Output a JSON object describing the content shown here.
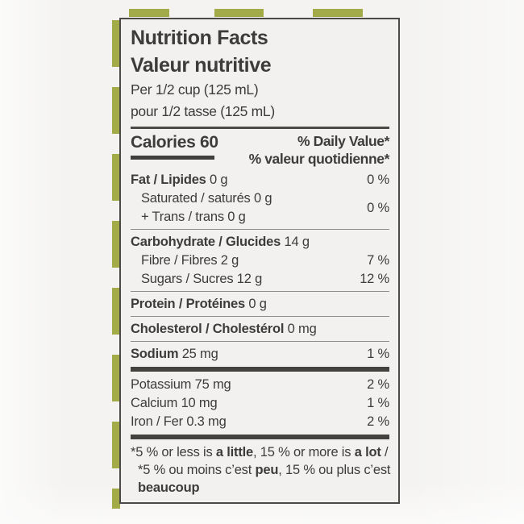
{
  "colors": {
    "stripe_green": "#a3ab48",
    "label_bg": "#f2f1ef",
    "page_bg": "#f4f3f1",
    "ink": "#3e3c3a",
    "rule": "#4c4a47"
  },
  "label": {
    "title_en": "Nutrition Facts",
    "title_fr": "Valeur nutritive",
    "serving_en": "Per 1/2 cup (125 mL)",
    "serving_fr": "pour 1/2 tasse (125 mL)",
    "calories": {
      "label": "Calories",
      "value": "60"
    },
    "daily_value_header_en": "% Daily Value*",
    "daily_value_header_fr": "% valeur quotidienne*",
    "rows": [
      {
        "key": "fat",
        "sep_before": "none",
        "indent": false,
        "dv": "0 %",
        "lines": [
          {
            "bold": "Fat / Lipides",
            "rest": " 0 g"
          }
        ]
      },
      {
        "key": "saturated-trans",
        "sep_before": "none",
        "indent": true,
        "dv": "0 %",
        "lines": [
          {
            "bold": "",
            "rest": "Saturated / saturés 0 g"
          },
          {
            "bold": "",
            "rest": "+ Trans / trans 0 g"
          }
        ]
      },
      {
        "key": "carbohydrate",
        "sep_before": "hairline",
        "indent": false,
        "dv": "",
        "lines": [
          {
            "bold": "Carbohydrate / Glucides",
            "rest": " 14 g"
          }
        ]
      },
      {
        "key": "fibre",
        "sep_before": "none",
        "indent": true,
        "dv": "7 %",
        "lines": [
          {
            "bold": "",
            "rest": "Fibre / Fibres 2 g"
          }
        ]
      },
      {
        "key": "sugars",
        "sep_before": "none",
        "indent": true,
        "dv": "12 %",
        "lines": [
          {
            "bold": "",
            "rest": "Sugars / Sucres 12 g"
          }
        ]
      },
      {
        "key": "protein",
        "sep_before": "hairline",
        "indent": false,
        "dv": "",
        "lines": [
          {
            "bold": "Protein / Protéines",
            "rest": " 0 g"
          }
        ]
      },
      {
        "key": "cholesterol",
        "sep_before": "hairline",
        "indent": false,
        "dv": "",
        "lines": [
          {
            "bold": "Cholesterol / Cholestérol",
            "rest": " 0 mg"
          }
        ]
      },
      {
        "key": "sodium",
        "sep_before": "hairline",
        "indent": false,
        "dv": "1 %",
        "lines": [
          {
            "bold": "Sodium",
            "rest": " 25 mg"
          }
        ]
      },
      {
        "key": "potassium",
        "sep_before": "thick",
        "indent": false,
        "dv": "2 %",
        "lines": [
          {
            "bold": "",
            "rest": "Potassium 75 mg"
          }
        ]
      },
      {
        "key": "calcium",
        "sep_before": "none",
        "indent": false,
        "dv": "1 %",
        "lines": [
          {
            "bold": "",
            "rest": "Calcium 10 mg"
          }
        ]
      },
      {
        "key": "iron",
        "sep_before": "none",
        "indent": false,
        "dv": "2 %",
        "lines": [
          {
            "bold": "",
            "rest": "Iron / Fer 0.3 mg"
          }
        ]
      }
    ],
    "footnote_lines": [
      {
        "indent": false,
        "parts": [
          {
            "t": "*5 % or less is "
          },
          {
            "t": "a little",
            "b": true
          },
          {
            "t": ", 15 % or more is "
          },
          {
            "t": "a lot",
            "b": true
          },
          {
            "t": " /"
          }
        ]
      },
      {
        "indent": true,
        "parts": [
          {
            "t": "*5 % ou moins c’est "
          },
          {
            "t": "peu",
            "b": true
          },
          {
            "t": ", 15 % ou plus c’est"
          }
        ]
      },
      {
        "indent": true,
        "parts": [
          {
            "t": "beaucoup",
            "b": true
          }
        ]
      }
    ]
  }
}
